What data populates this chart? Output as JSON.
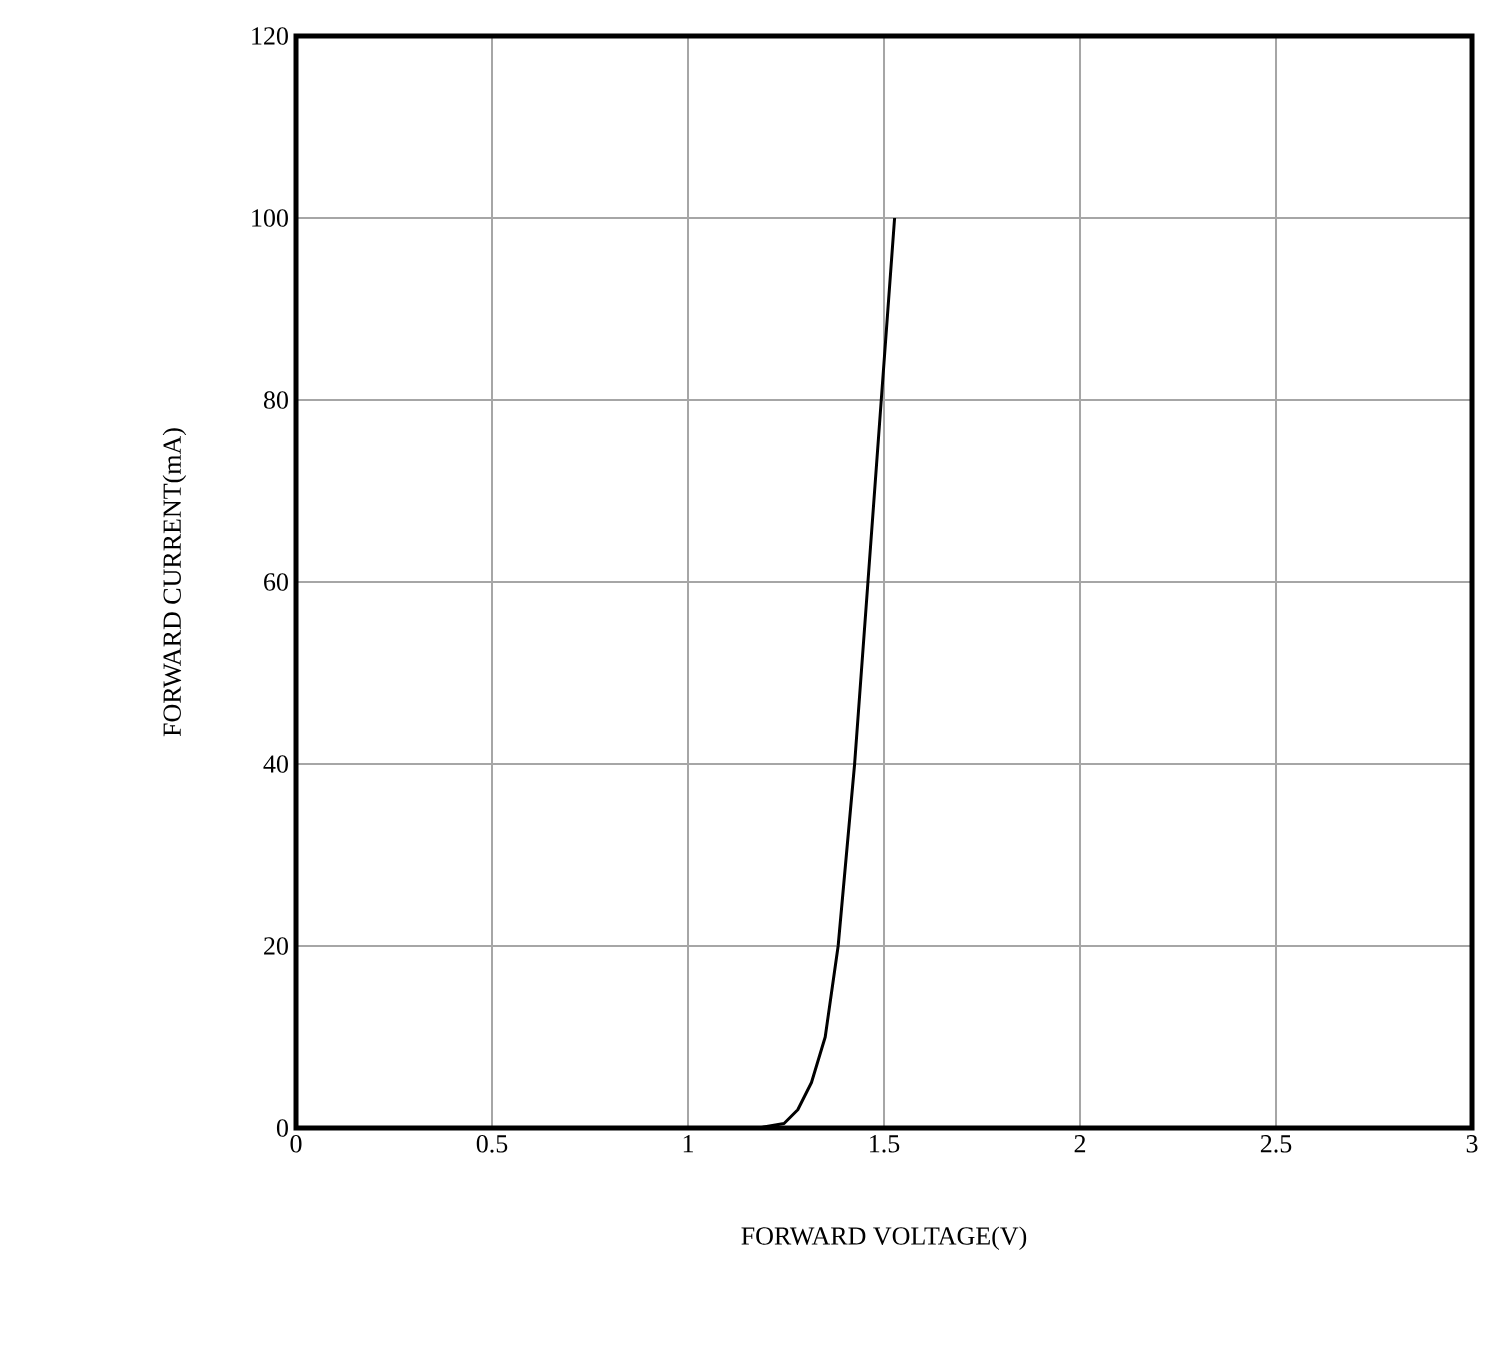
{
  "chart_data": {
    "type": "line",
    "xlabel": "FORWARD VOLTAGE(V)",
    "ylabel": "FORWARD CURRENT(mA)",
    "xlim": [
      0,
      3
    ],
    "ylim": [
      0,
      120
    ],
    "xticks": [
      0,
      0.5,
      1,
      1.5,
      2,
      2.5,
      3
    ],
    "yticks": [
      0,
      20,
      40,
      60,
      80,
      100,
      120
    ],
    "grid": true,
    "marker": "none",
    "line_style": "solid",
    "series": [
      {
        "color": "#000000",
        "x": [
          1.18,
          1.245,
          1.28,
          1.315,
          1.35,
          1.383,
          1.425,
          1.459,
          1.493,
          1.527
        ],
        "values": [
          0,
          0.5,
          2,
          5,
          10,
          20,
          40,
          60,
          80,
          100
        ]
      }
    ]
  }
}
